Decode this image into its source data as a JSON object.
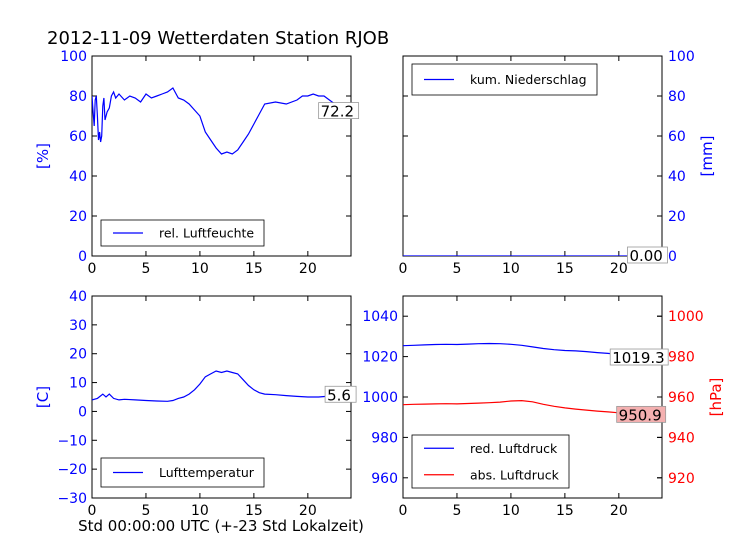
{
  "figure": {
    "title": "2012-11-09 Wetterdaten Station RJOB",
    "xlabel": "Std 00:00:00 UTC (+-23 Std Lokalzeit)",
    "colors": {
      "blue": "#0000ff",
      "red": "#ff0000",
      "axis": "#000000"
    }
  },
  "chart_data": [
    {
      "type": "line",
      "panel": "top-left",
      "xlim": [
        0,
        24
      ],
      "xticks": [
        0,
        5,
        10,
        15,
        20
      ],
      "ylim": [
        0,
        100
      ],
      "yticks": [
        0,
        20,
        40,
        60,
        80,
        100
      ],
      "ylabel": "[%]",
      "ylabel_color": "#0000ff",
      "ytick_color": "#0000ff",
      "legend_position": "lower-center",
      "series": [
        {
          "name": "rel. Luftfeuchte",
          "color": "#0000ff",
          "x": [
            0,
            0.1,
            0.2,
            0.3,
            0.4,
            0.5,
            0.6,
            0.7,
            0.8,
            0.9,
            1.0,
            1.1,
            1.2,
            1.4,
            1.6,
            1.8,
            2.0,
            2.2,
            2.5,
            3.0,
            3.5,
            4.0,
            4.5,
            5.0,
            5.5,
            6.0,
            6.5,
            7.0,
            7.5,
            8.0,
            8.5,
            9.0,
            9.5,
            10.0,
            10.5,
            11.0,
            11.5,
            12.0,
            12.5,
            13.0,
            13.5,
            14.0,
            14.5,
            15.0,
            15.5,
            16.0,
            17.0,
            18.0,
            19.0,
            19.5,
            20.0,
            20.5,
            21.0,
            21.5,
            22.0,
            23.0,
            24.0
          ],
          "y": [
            80,
            72,
            65,
            78,
            80,
            70,
            58,
            62,
            57,
            60,
            75,
            79,
            68,
            72,
            74,
            80,
            82,
            79,
            81,
            78,
            80,
            79,
            77,
            81,
            79,
            80,
            81,
            82,
            84,
            79,
            78,
            76,
            73,
            70,
            62,
            58,
            54,
            51,
            52,
            51,
            53,
            57,
            61,
            66,
            71,
            76,
            77,
            76,
            78,
            80,
            80,
            81,
            80,
            80,
            78,
            74,
            72
          ]
        }
      ],
      "annotation": {
        "text": "72.2",
        "x": 21.0,
        "y": 72.2,
        "box_color": "#ffffff"
      }
    },
    {
      "type": "line",
      "panel": "top-right",
      "xlim": [
        0,
        24
      ],
      "xticks": [
        0,
        5,
        10,
        15,
        20
      ],
      "ylim": [
        0,
        100
      ],
      "yticks": [
        0,
        20,
        40,
        60,
        80,
        100
      ],
      "y_axis_side": "right",
      "ylabel": "[mm]",
      "ylabel_color": "#0000ff",
      "ytick_color": "#0000ff",
      "legend_position": "upper-center",
      "series": [
        {
          "name": "kum. Niederschlag",
          "color": "#0000ff",
          "x": [
            0,
            24
          ],
          "y": [
            0,
            0
          ]
        }
      ],
      "annotation": {
        "text": "0.00",
        "x": 20.8,
        "y": 0.0,
        "box_color": "#ffffff"
      }
    },
    {
      "type": "line",
      "panel": "bottom-left",
      "xlim": [
        0,
        24
      ],
      "xticks": [
        0,
        5,
        10,
        15,
        20
      ],
      "ylim": [
        -30,
        40
      ],
      "yticks": [
        -30,
        -20,
        -10,
        0,
        10,
        20,
        30,
        40
      ],
      "ylabel": "[C]",
      "ylabel_color": "#0000ff",
      "ytick_color": "#0000ff",
      "legend_position": "lower-center",
      "series": [
        {
          "name": "Lufttemperatur",
          "color": "#0000ff",
          "x": [
            0,
            0.5,
            1.0,
            1.3,
            1.6,
            2.0,
            2.5,
            3.0,
            4.0,
            5.0,
            6.0,
            7.0,
            7.5,
            8.0,
            8.5,
            9.0,
            9.5,
            10.0,
            10.5,
            11.0,
            11.5,
            12.0,
            12.5,
            13.0,
            13.5,
            14.0,
            14.5,
            15.0,
            15.5,
            16.0,
            17.0,
            18.0,
            19.0,
            20.0,
            21.0,
            22.0,
            23.0,
            24.0
          ],
          "y": [
            4,
            4.5,
            6,
            5,
            6,
            4.5,
            4,
            4.2,
            4,
            3.8,
            3.6,
            3.5,
            3.8,
            4.5,
            5,
            6,
            7.5,
            9.5,
            12,
            13,
            14,
            13.5,
            14,
            13.5,
            13,
            11,
            9,
            7.5,
            6.5,
            6,
            5.8,
            5.5,
            5.2,
            5,
            5,
            5.3,
            5.5,
            5.6
          ]
        }
      ],
      "annotation": {
        "text": "5.6",
        "x": 21.6,
        "y": 5.6,
        "box_color": "#ffffff"
      }
    },
    {
      "type": "line",
      "panel": "bottom-right",
      "xlim": [
        0,
        24
      ],
      "xticks": [
        0,
        5,
        10,
        15,
        20
      ],
      "ylim": [
        950,
        1050
      ],
      "yticks": [
        960,
        980,
        1000,
        1020,
        1040
      ],
      "ytick_color": "#0000ff",
      "ylim_right": [
        910,
        1010
      ],
      "yticks_right": [
        920,
        940,
        960,
        980,
        1000
      ],
      "ylabel_right": "[hPa]",
      "ylabel_right_color": "#ff0000",
      "ytick_right_color": "#ff0000",
      "legend_position": "lower-center",
      "series": [
        {
          "name": "red. Luftdruck",
          "color": "#0000ff",
          "axis": "left",
          "x": [
            0,
            1,
            2,
            3,
            4,
            5,
            6,
            7,
            8,
            9,
            10,
            11,
            12,
            13,
            14,
            15,
            16,
            17,
            18,
            19,
            20,
            21,
            22,
            23,
            24
          ],
          "y": [
            1025.4,
            1025.6,
            1025.8,
            1026.0,
            1026.1,
            1026.0,
            1026.2,
            1026.4,
            1026.5,
            1026.4,
            1026.1,
            1025.6,
            1024.8,
            1024.0,
            1023.4,
            1023.0,
            1022.8,
            1022.5,
            1022.0,
            1021.6,
            1021.0,
            1020.6,
            1020.1,
            1019.6,
            1019.3
          ]
        },
        {
          "name": "abs. Luftdruck",
          "color": "#ff0000",
          "axis": "right",
          "x": [
            0,
            1,
            2,
            3,
            4,
            5,
            6,
            7,
            8,
            9,
            10,
            11,
            12,
            13,
            14,
            15,
            16,
            17,
            18,
            19,
            20,
            21,
            22,
            23,
            24
          ],
          "y": [
            956.2,
            956.4,
            956.5,
            956.6,
            956.7,
            956.6,
            956.8,
            957.0,
            957.2,
            957.5,
            958.0,
            958.2,
            957.6,
            956.4,
            955.4,
            954.6,
            954.0,
            953.5,
            953.0,
            952.6,
            952.2,
            951.8,
            951.4,
            951.1,
            950.9
          ]
        }
      ],
      "annotations": [
        {
          "text": "1019.3",
          "x": 19.2,
          "y": 1019.3,
          "axis": "left",
          "box_color": "#ffffff"
        },
        {
          "text": "950.9",
          "x": 19.8,
          "y": 950.9,
          "axis": "right",
          "box_color": "#f4b0b0"
        }
      ]
    }
  ]
}
